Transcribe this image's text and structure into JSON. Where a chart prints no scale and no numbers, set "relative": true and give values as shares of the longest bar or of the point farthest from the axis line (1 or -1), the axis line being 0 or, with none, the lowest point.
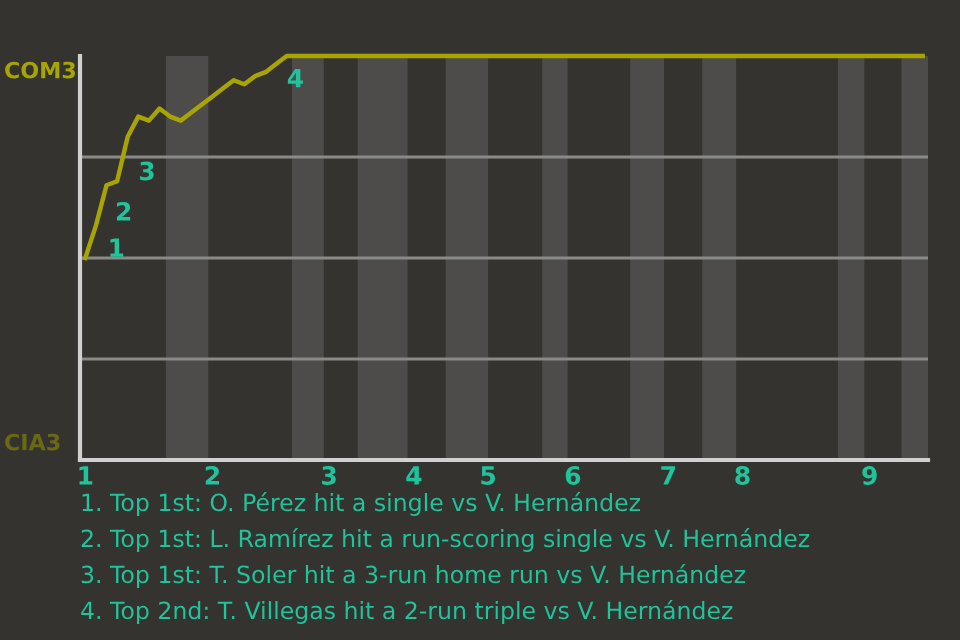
{
  "chart_data": {
    "type": "line",
    "relative": true,
    "categories": [
      "1",
      null,
      null,
      null,
      null,
      null,
      null,
      null,
      null,
      null,
      null,
      null,
      "2",
      null,
      null,
      null,
      null,
      null,
      null,
      null,
      null,
      null,
      null,
      "3",
      null,
      null,
      null,
      null,
      null,
      null,
      null,
      "4",
      null,
      null,
      null,
      null,
      null,
      null,
      "5",
      null,
      null,
      null,
      null,
      null,
      null,
      null,
      "6",
      null,
      null,
      null,
      null,
      null,
      null,
      null,
      null,
      "7",
      null,
      null,
      null,
      null,
      null,
      null,
      "8",
      null,
      null,
      null,
      null,
      null,
      null,
      null,
      null,
      null,
      null,
      null,
      "9",
      null,
      null,
      null,
      null,
      null
    ],
    "series": [
      {
        "color": "#a8a400",
        "values": [
          0.5,
          0.58,
          0.68,
          0.69,
          0.8,
          0.85,
          0.84,
          0.87,
          0.85,
          0.84,
          0.86,
          0.88,
          0.9,
          0.92,
          0.94,
          0.93,
          0.95,
          0.96,
          0.98,
          1.0,
          1.0,
          1.0,
          1.0,
          1.0,
          1.0,
          1.0,
          1.0,
          1.0,
          1.0,
          1.0,
          1.0,
          1.0,
          1.0,
          1.0,
          1.0,
          1.0,
          1.0,
          1.0,
          1.0,
          1.0,
          1.0,
          1.0,
          1.0,
          1.0,
          1.0,
          1.0,
          1.0,
          1.0,
          1.0,
          1.0,
          1.0,
          1.0,
          1.0,
          1.0,
          1.0,
          1.0,
          1.0,
          1.0,
          1.0,
          1.0,
          1.0,
          1.0,
          1.0,
          1.0,
          1.0,
          1.0,
          1.0,
          1.0,
          1.0,
          1.0,
          1.0,
          1.0,
          1.0,
          1.0,
          1.0,
          1.0,
          1.0,
          1.0,
          1.0,
          1.0
        ]
      }
    ],
    "grid": "y",
    "annotations": [
      "COM3",
      "CIA3",
      "1",
      "2",
      "3",
      "4",
      "1. Top 1st: O. Pérez hit a single vs V. Hernández",
      "2. Top 1st: L. Ramírez hit a run-scoring single vs V. Hernández",
      "3. Top 1st: T. Soler hit a 3-run home run vs V. Hernández",
      "4. Top 2nd: T. Villegas hit a 2-run triple vs V. Hernández"
    ]
  }
}
